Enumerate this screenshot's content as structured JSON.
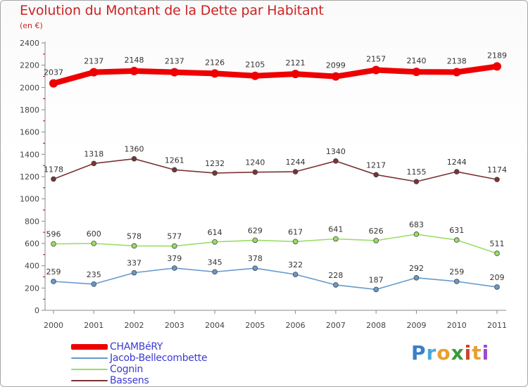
{
  "title": "Evolution du Montant de la Dette par Habitant",
  "subtitle": "(en €)",
  "brand": {
    "letters": [
      "P",
      "r",
      "o",
      "x",
      "i",
      "t",
      "i"
    ],
    "colors": [
      "#3a7fc8",
      "#4aa8d8",
      "#e8a030",
      "#3a9a3a",
      "#d0402a",
      "#e8a030",
      "#9a4ad0"
    ]
  },
  "chart_data": {
    "type": "line",
    "x": [
      "2000",
      "2001",
      "2002",
      "2003",
      "2004",
      "2005",
      "2006",
      "2007",
      "2008",
      "2009",
      "2010",
      "2011"
    ],
    "ylim": [
      0,
      2400
    ],
    "yticks": [
      "0",
      "200",
      "400",
      "600",
      "800",
      "1000",
      "1200",
      "1400",
      "1600",
      "1800",
      "2000",
      "2200",
      "2400"
    ],
    "grid": false,
    "legend_position": "bottom-left",
    "series": [
      {
        "name": "CHAMBéRY",
        "color": "#ee0000",
        "values": [
          2037,
          2137,
          2148,
          2137,
          2126,
          2105,
          2121,
          2099,
          2157,
          2140,
          2138,
          2189
        ]
      },
      {
        "name": "Jacob-Bellecombette",
        "color": "#6699cc",
        "values": [
          259,
          235,
          337,
          379,
          345,
          378,
          322,
          228,
          187,
          292,
          259,
          209
        ]
      },
      {
        "name": "Cognin",
        "color": "#99dd66",
        "values": [
          596,
          600,
          578,
          577,
          614,
          629,
          617,
          641,
          626,
          683,
          631,
          511
        ]
      },
      {
        "name": "Bassens",
        "color": "#7a3333",
        "values": [
          1178,
          1318,
          1360,
          1261,
          1232,
          1240,
          1244,
          1340,
          1217,
          1155,
          1244,
          1174
        ]
      }
    ]
  }
}
